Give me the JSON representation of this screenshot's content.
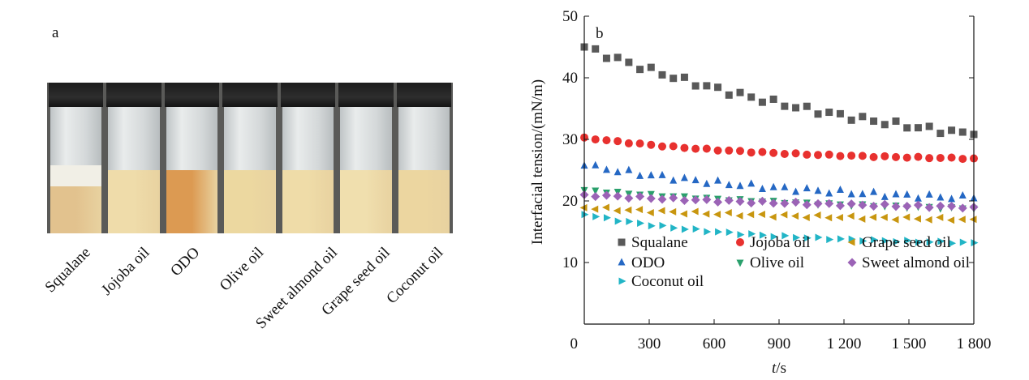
{
  "panel_a": {
    "letter": "a",
    "vials": [
      {
        "label": "Squalane",
        "liquid": "#e2c28e",
        "foam": true
      },
      {
        "label": "Jojoba oil",
        "liquid": "#efdcaa",
        "foam": false
      },
      {
        "label": "ODO",
        "liquid": "#dc9a52",
        "foam": false
      },
      {
        "label": "Olive oil",
        "liquid": "#ecd8a0",
        "foam": false
      },
      {
        "label": "Sweet almond oil",
        "liquid": "#efdca8",
        "foam": false
      },
      {
        "label": "Grape seed oil",
        "liquid": "#f0dfae",
        "foam": false
      },
      {
        "label": "Coconut oil",
        "liquid": "#ecd6a0",
        "foam": false
      }
    ]
  },
  "chart_data": {
    "type": "scatter",
    "panel_letter": "b",
    "xlabel_italic": "t",
    "xlabel_unit": "/s",
    "ylabel": "Interfacial tension/(mN/m)",
    "xlim": [
      0,
      1800
    ],
    "ylim": [
      0,
      50
    ],
    "x_ticks": [
      0,
      300,
      600,
      900,
      1200,
      1500,
      1800
    ],
    "x_tick_labels": [
      "0",
      "300",
      "600",
      "900",
      "1 200",
      "1 500",
      "1 800"
    ],
    "y_ticks": [
      10,
      20,
      30,
      40,
      50
    ],
    "y_tick_labels": [
      "10",
      "20",
      "30",
      "40",
      "50"
    ],
    "legend_placement": "bottom-left",
    "series": [
      {
        "name": "Squalane",
        "color": "#595959",
        "marker": "square",
        "start": 45.0,
        "end": 30.8,
        "rate": 1.2,
        "noise": 0.5
      },
      {
        "name": "Jojoba oil",
        "color": "#e8312f",
        "marker": "circle",
        "start": 30.3,
        "end": 26.9,
        "rate": 2.2,
        "noise": 0.1
      },
      {
        "name": "Grape seed oil",
        "color": "#c8960f",
        "marker": "triangle-left",
        "start": 18.9,
        "end": 17.0,
        "rate": 1.5,
        "noise": 0.25
      },
      {
        "name": "ODO",
        "color": "#2568c4",
        "marker": "triangle-up",
        "start": 25.7,
        "end": 20.4,
        "rate": 1.6,
        "noise": 0.4
      },
      {
        "name": "Olive oil",
        "color": "#2aa06c",
        "marker": "triangle-down",
        "start": 21.8,
        "end": 18.8,
        "rate": 1.2,
        "noise": 0.15
      },
      {
        "name": "Sweet almond oil",
        "color": "#9b63b6",
        "marker": "diamond",
        "start": 21.0,
        "end": 19.0,
        "rate": 1.3,
        "noise": 0.2
      },
      {
        "name": "Coconut oil",
        "color": "#22b5c6",
        "marker": "triangle-right",
        "start": 17.8,
        "end": 13.2,
        "rate": 2.4,
        "noise": 0.15
      }
    ]
  }
}
